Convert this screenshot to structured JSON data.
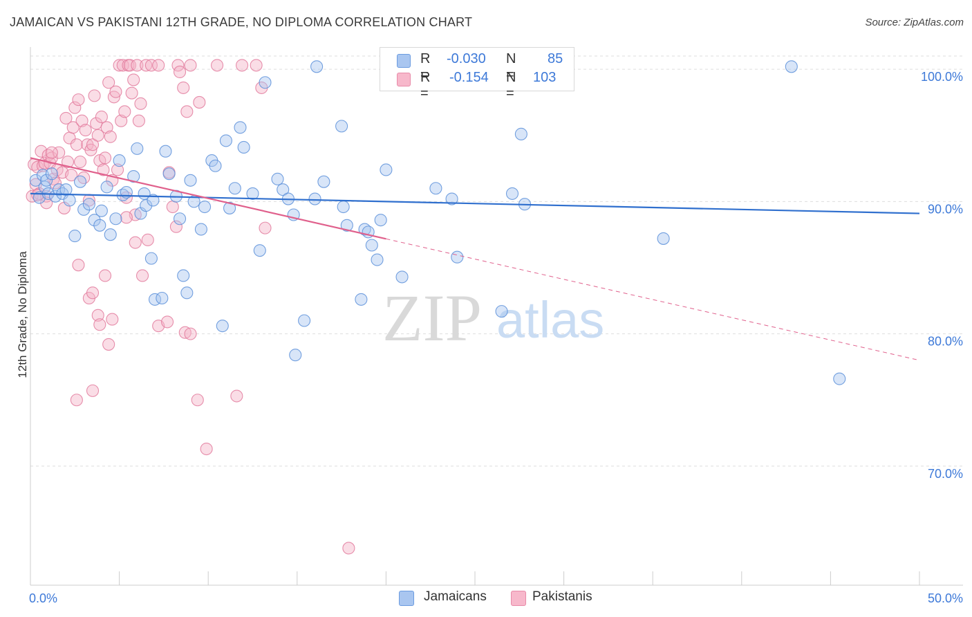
{
  "title": "JAMAICAN VS PAKISTANI 12TH GRADE, NO DIPLOMA CORRELATION CHART",
  "source": "Source: ZipAtlas.com",
  "watermark": {
    "zip": "ZIP",
    "atlas": "atlas"
  },
  "legend": {
    "rows": [
      {
        "r_label": "R =",
        "r_value": "-0.030",
        "n_label": "N =",
        "n_value": "85",
        "color": "#a9c6f0",
        "stroke": "#6b9be0"
      },
      {
        "r_label": "R =",
        "r_value": "-0.154",
        "n_label": "N =",
        "n_value": "103",
        "color": "#f7b8cb",
        "stroke": "#e88aa8"
      }
    ],
    "series_names": [
      "Jamaicans",
      "Pakistanis"
    ]
  },
  "colors": {
    "jamaican_fill": "#a9c6f0",
    "jamaican_stroke": "#5b8fd9",
    "jamaican_line": "#2f6fce",
    "pakistani_fill": "#f5b3c8",
    "pakistani_stroke": "#e27a9c",
    "pakistani_line": "#e0608c",
    "tick_label": "#3d79d8"
  },
  "chart_data": {
    "type": "scatter",
    "title": "JAMAICAN VS PAKISTANI 12TH GRADE, NO DIPLOMA CORRELATION CHART",
    "xlabel": "",
    "ylabel": "12th Grade, No Diploma",
    "xlim": [
      0,
      50
    ],
    "ylim": [
      61,
      101
    ],
    "x_tick_labels": [
      "0.0%",
      "50.0%"
    ],
    "y_ticks": [
      70,
      80,
      90,
      100
    ],
    "y_tick_labels": [
      "70.0%",
      "80.0%",
      "90.0%",
      "100.0%"
    ],
    "grid": true,
    "legend_position": "top-center",
    "series": [
      {
        "name": "Jamaicans",
        "trend": {
          "x": [
            0,
            50
          ],
          "y": [
            90.6,
            89.1
          ],
          "dashed_from": null
        },
        "points": [
          [
            0.3,
            91.6
          ],
          [
            0.5,
            90.3
          ],
          [
            0.7,
            92.0
          ],
          [
            0.8,
            91.1
          ],
          [
            0.9,
            91.6
          ],
          [
            1.0,
            90.6
          ],
          [
            1.2,
            92.1
          ],
          [
            1.4,
            90.4
          ],
          [
            1.6,
            90.9
          ],
          [
            1.8,
            90.6
          ],
          [
            2.0,
            90.9
          ],
          [
            2.2,
            90.1
          ],
          [
            2.5,
            87.4
          ],
          [
            2.8,
            91.5
          ],
          [
            3.0,
            89.4
          ],
          [
            3.3,
            89.8
          ],
          [
            3.6,
            88.6
          ],
          [
            4.0,
            89.3
          ],
          [
            4.3,
            91.1
          ],
          [
            4.5,
            87.5
          ],
          [
            4.8,
            88.7
          ],
          [
            5.0,
            93.1
          ],
          [
            5.2,
            90.5
          ],
          [
            5.4,
            90.7
          ],
          [
            5.8,
            91.9
          ],
          [
            6.0,
            94.0
          ],
          [
            6.2,
            89.1
          ],
          [
            6.4,
            90.6
          ],
          [
            6.5,
            89.7
          ],
          [
            6.8,
            85.7
          ],
          [
            7.0,
            82.6
          ],
          [
            7.4,
            82.7
          ],
          [
            7.6,
            93.8
          ],
          [
            7.8,
            92.1
          ],
          [
            8.2,
            90.4
          ],
          [
            8.4,
            88.7
          ],
          [
            8.6,
            84.4
          ],
          [
            8.8,
            83.1
          ],
          [
            9.0,
            91.6
          ],
          [
            9.2,
            90.0
          ],
          [
            9.6,
            87.9
          ],
          [
            9.8,
            89.6
          ],
          [
            10.2,
            93.1
          ],
          [
            10.4,
            92.7
          ],
          [
            10.8,
            80.6
          ],
          [
            11.0,
            94.6
          ],
          [
            11.2,
            89.5
          ],
          [
            11.5,
            91.0
          ],
          [
            11.8,
            95.6
          ],
          [
            12.0,
            94.1
          ],
          [
            12.5,
            90.6
          ],
          [
            12.9,
            86.3
          ],
          [
            13.2,
            99.0
          ],
          [
            14.2,
            90.9
          ],
          [
            14.5,
            90.2
          ],
          [
            14.8,
            89.0
          ],
          [
            14.9,
            78.4
          ],
          [
            15.4,
            81.0
          ],
          [
            16.1,
            100.2
          ],
          [
            16.5,
            91.5
          ],
          [
            17.5,
            95.7
          ],
          [
            17.6,
            89.6
          ],
          [
            17.8,
            88.2
          ],
          [
            18.6,
            82.6
          ],
          [
            18.8,
            87.9
          ],
          [
            19.0,
            87.7
          ],
          [
            19.2,
            86.7
          ],
          [
            19.5,
            85.6
          ],
          [
            19.7,
            88.6
          ],
          [
            20.0,
            92.4
          ],
          [
            20.9,
            84.3
          ],
          [
            22.8,
            91.0
          ],
          [
            23.7,
            90.2
          ],
          [
            24.0,
            85.8
          ],
          [
            26.5,
            81.7
          ],
          [
            27.1,
            90.6
          ],
          [
            27.6,
            95.1
          ],
          [
            35.6,
            87.2
          ],
          [
            42.8,
            100.2
          ],
          [
            45.5,
            76.6
          ],
          [
            27.8,
            89.8
          ],
          [
            16.0,
            90.2
          ],
          [
            6.9,
            90.1
          ],
          [
            13.9,
            91.7
          ],
          [
            3.9,
            88.2
          ]
        ]
      },
      {
        "name": "Pakistanis",
        "trend": {
          "x": [
            0,
            50
          ],
          "y": [
            93.3,
            78.0
          ],
          "dashed_from": 20.0
        },
        "points": [
          [
            0.1,
            90.4
          ],
          [
            0.2,
            92.8
          ],
          [
            0.3,
            91.3
          ],
          [
            0.4,
            92.6
          ],
          [
            0.5,
            90.6
          ],
          [
            0.6,
            93.8
          ],
          [
            0.7,
            92.7
          ],
          [
            0.8,
            92.9
          ],
          [
            0.9,
            90.4
          ],
          [
            1.0,
            93.5
          ],
          [
            1.1,
            92.9
          ],
          [
            1.2,
            93.3
          ],
          [
            1.3,
            91.7
          ],
          [
            1.5,
            92.4
          ],
          [
            1.6,
            93.7
          ],
          [
            1.8,
            92.2
          ],
          [
            1.9,
            89.5
          ],
          [
            2.0,
            96.3
          ],
          [
            2.1,
            93.0
          ],
          [
            2.2,
            94.8
          ],
          [
            2.3,
            92.0
          ],
          [
            2.4,
            95.6
          ],
          [
            2.5,
            97.1
          ],
          [
            2.6,
            94.3
          ],
          [
            2.7,
            97.7
          ],
          [
            2.8,
            93.0
          ],
          [
            2.9,
            96.1
          ],
          [
            3.0,
            91.8
          ],
          [
            3.1,
            95.4
          ],
          [
            3.2,
            94.3
          ],
          [
            3.3,
            90.1
          ],
          [
            3.4,
            93.9
          ],
          [
            3.5,
            94.3
          ],
          [
            3.6,
            98.0
          ],
          [
            3.7,
            95.9
          ],
          [
            3.8,
            95.0
          ],
          [
            3.9,
            93.1
          ],
          [
            4.0,
            96.4
          ],
          [
            4.1,
            92.4
          ],
          [
            4.2,
            93.3
          ],
          [
            4.3,
            95.6
          ],
          [
            4.4,
            99.0
          ],
          [
            4.5,
            94.9
          ],
          [
            4.6,
            91.6
          ],
          [
            4.7,
            97.9
          ],
          [
            4.8,
            98.3
          ],
          [
            4.9,
            92.4
          ],
          [
            5.0,
            100.3
          ],
          [
            5.1,
            96.1
          ],
          [
            5.2,
            100.3
          ],
          [
            5.3,
            96.8
          ],
          [
            5.4,
            90.3
          ],
          [
            5.5,
            100.3
          ],
          [
            5.6,
            100.3
          ],
          [
            5.7,
            98.2
          ],
          [
            5.8,
            99.2
          ],
          [
            5.9,
            89.0
          ],
          [
            6.0,
            100.3
          ],
          [
            6.1,
            96.1
          ],
          [
            6.2,
            97.4
          ],
          [
            6.5,
            100.3
          ],
          [
            6.8,
            100.3
          ],
          [
            7.2,
            100.3
          ],
          [
            7.8,
            92.2
          ],
          [
            8.0,
            89.6
          ],
          [
            8.3,
            100.3
          ],
          [
            8.4,
            99.8
          ],
          [
            8.6,
            98.6
          ],
          [
            8.8,
            96.8
          ],
          [
            9.0,
            100.3
          ],
          [
            9.5,
            97.5
          ],
          [
            10.5,
            100.3
          ],
          [
            11.9,
            100.3
          ],
          [
            12.7,
            100.3
          ],
          [
            13.0,
            98.6
          ],
          [
            0.4,
            90.5
          ],
          [
            0.9,
            89.9
          ],
          [
            1.4,
            91.4
          ],
          [
            2.7,
            85.2
          ],
          [
            3.3,
            82.7
          ],
          [
            3.5,
            83.1
          ],
          [
            3.8,
            81.4
          ],
          [
            3.9,
            80.7
          ],
          [
            4.2,
            84.4
          ],
          [
            4.4,
            79.2
          ],
          [
            4.6,
            81.1
          ],
          [
            5.4,
            88.8
          ],
          [
            5.9,
            86.9
          ],
          [
            6.3,
            84.4
          ],
          [
            6.6,
            87.1
          ],
          [
            7.2,
            80.6
          ],
          [
            7.7,
            80.9
          ],
          [
            8.2,
            88.1
          ],
          [
            8.7,
            80.1
          ],
          [
            9.0,
            80.0
          ],
          [
            9.4,
            75.0
          ],
          [
            9.9,
            71.3
          ],
          [
            11.6,
            75.3
          ],
          [
            13.2,
            88.0
          ],
          [
            17.9,
            63.8
          ],
          [
            2.6,
            75.0
          ],
          [
            3.5,
            75.7
          ],
          [
            1.2,
            93.7
          ]
        ]
      }
    ]
  }
}
